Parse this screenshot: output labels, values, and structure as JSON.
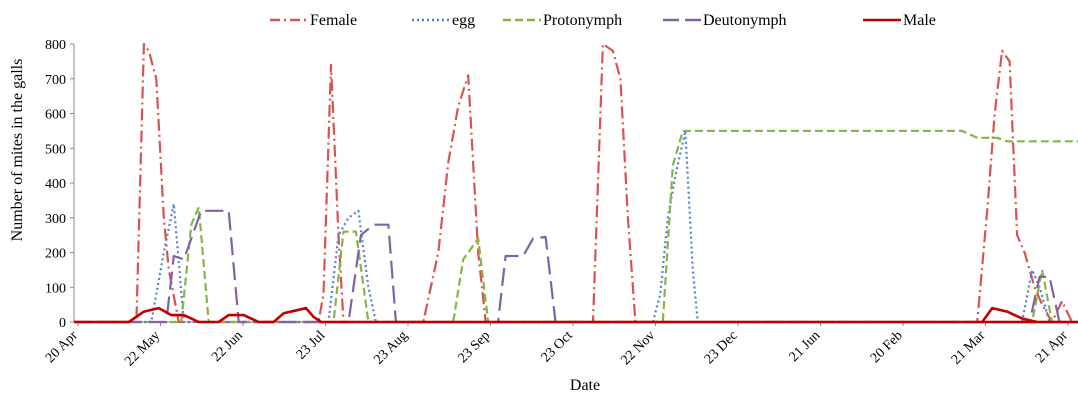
{
  "chart_data": {
    "type": "line",
    "xlabel": "Date",
    "ylabel": "Number of mites in the galls",
    "ylim": [
      0,
      800
    ],
    "yticks": [
      0,
      100,
      200,
      300,
      400,
      500,
      600,
      700,
      800
    ],
    "grid": false,
    "legend_position": "top",
    "x_tick_labels": [
      "20 Apr",
      "22 May",
      "22 Jun",
      "23 Jul",
      "23 Aug",
      "23 Sep",
      "23 Oct",
      "22 Nov",
      "23 Dec",
      "21 Jun",
      "20 Feb",
      "21 Mar",
      "21 Apr"
    ],
    "x": [
      0,
      1,
      2,
      3,
      4,
      5,
      6,
      7,
      8,
      9,
      10,
      11,
      12,
      13,
      14,
      15,
      16,
      17,
      18,
      19,
      20,
      21,
      22,
      23,
      24,
      25,
      26,
      27,
      28,
      29,
      30,
      31,
      32,
      33,
      34,
      35,
      36,
      37,
      38,
      39,
      40,
      41,
      42,
      43,
      44,
      45,
      46,
      47,
      48,
      49,
      50,
      51,
      52,
      53,
      54,
      55,
      56,
      57,
      58,
      59,
      60,
      61,
      62,
      63,
      64,
      65,
      66,
      67,
      68,
      69,
      70,
      71,
      72,
      73,
      74,
      75,
      76,
      77,
      78,
      79,
      80,
      81,
      82,
      83,
      84,
      85,
      86,
      87,
      88,
      89,
      90,
      91,
      92,
      93,
      94,
      95,
      96,
      97,
      98,
      99,
      100,
      101,
      102,
      103,
      104,
      105,
      106,
      107,
      108,
      109,
      110,
      111,
      112,
      113,
      114,
      115,
      116,
      117,
      118,
      119,
      120,
      121,
      122,
      123,
      124,
      125,
      126,
      127,
      128,
      129,
      130,
      131,
      132,
      133,
      134,
      135,
      136,
      137,
      138,
      139,
      140,
      141,
      142,
      143,
      144,
      145,
      146,
      147,
      148,
      149,
      150,
      151,
      152,
      153,
      154,
      155,
      156,
      157,
      158,
      159,
      160,
      161,
      162,
      163,
      164,
      165,
      166,
      167,
      168,
      169,
      170,
      171,
      172,
      173,
      174,
      175,
      176,
      177,
      178,
      179,
      180,
      181,
      182,
      183,
      184,
      185,
      186,
      187,
      188,
      189,
      190,
      191,
      192,
      193,
      194,
      195,
      196,
      197,
      198,
      199,
      200,
      201,
      202,
      203,
      204,
      205,
      206,
      207,
      208,
      209,
      210,
      211,
      212,
      213,
      214,
      215,
      216,
      217,
      218,
      219,
      220,
      221,
      222,
      223,
      224,
      225,
      226,
      227,
      228,
      229,
      230,
      231,
      232,
      233,
      234,
      235,
      236,
      237,
      238,
      239,
      240,
      241,
      242,
      243,
      244,
      245,
      246,
      247,
      248,
      249,
      250,
      251,
      252,
      253,
      254,
      255,
      256,
      257,
      258,
      259,
      260,
      261,
      262,
      263,
      264,
      265,
      266,
      267,
      268,
      269,
      270,
      271,
      272,
      273,
      274,
      275,
      276,
      277,
      278,
      279,
      280,
      281,
      282,
      283,
      284,
      285,
      286,
      287,
      288,
      289,
      290,
      291,
      292,
      293,
      294,
      295,
      296,
      297,
      298,
      299,
      300,
      301,
      302,
      303,
      304,
      305,
      306,
      307,
      308,
      309,
      310,
      311,
      312,
      313,
      314,
      315,
      316,
      317,
      318,
      319,
      320,
      321,
      322,
      323,
      324,
      325,
      326,
      327,
      328,
      329,
      330,
      331,
      332,
      333,
      334,
      335,
      336,
      337,
      338,
      339,
      340,
      341,
      342,
      343,
      344,
      345,
      346,
      347,
      348,
      349,
      350,
      351,
      352,
      353,
      354,
      355,
      356,
      357,
      358,
      359,
      360,
      361,
      362,
      363,
      364,
      365,
      366,
      367,
      368,
      369,
      370,
      371,
      372,
      373,
      374,
      375,
      376,
      377,
      378,
      379,
      380,
      381,
      382,
      383,
      384,
      385,
      386,
      387,
      388,
      389,
      390,
      391,
      392,
      393,
      394,
      395,
      396,
      397,
      398,
      399,
      400
    ],
    "series": [
      {
        "name": "Female",
        "color": "#d9534f",
        "dash": "dashdot",
        "points": [
          [
            0,
            0
          ],
          [
            25,
            0
          ],
          [
            28,
            800
          ],
          [
            30,
            780
          ],
          [
            33,
            700
          ],
          [
            36,
            300
          ],
          [
            38,
            150
          ],
          [
            42,
            0
          ],
          [
            98,
            0
          ],
          [
            100,
            80
          ],
          [
            103,
            740
          ],
          [
            106,
            250
          ],
          [
            108,
            0
          ],
          [
            140,
            0
          ],
          [
            146,
            200
          ],
          [
            150,
            460
          ],
          [
            154,
            620
          ],
          [
            158,
            710
          ],
          [
            162,
            200
          ],
          [
            165,
            0
          ],
          [
            208,
            0
          ],
          [
            212,
            800
          ],
          [
            216,
            780
          ],
          [
            219,
            700
          ],
          [
            222,
            300
          ],
          [
            225,
            0
          ],
          [
            362,
            0
          ],
          [
            366,
            320
          ],
          [
            369,
            600
          ],
          [
            372,
            780
          ],
          [
            375,
            750
          ],
          [
            378,
            250
          ],
          [
            381,
            200
          ],
          [
            385,
            100
          ],
          [
            388,
            50
          ],
          [
            392,
            0
          ],
          [
            396,
            60
          ],
          [
            400,
            0
          ]
        ]
      },
      {
        "name": "egg",
        "color": "#4f7fd9",
        "dash": "dot",
        "points": [
          [
            0,
            0
          ],
          [
            31,
            0
          ],
          [
            36,
            200
          ],
          [
            40,
            340
          ],
          [
            44,
            0
          ],
          [
            102,
            0
          ],
          [
            106,
            250
          ],
          [
            110,
            300
          ],
          [
            114,
            320
          ],
          [
            118,
            100
          ],
          [
            121,
            0
          ],
          [
            232,
            0
          ],
          [
            235,
            80
          ],
          [
            238,
            300
          ],
          [
            241,
            420
          ],
          [
            245,
            550
          ],
          [
            248,
            150
          ],
          [
            250,
            0
          ],
          [
            380,
            0
          ],
          [
            384,
            150
          ],
          [
            387,
            100
          ],
          [
            391,
            0
          ],
          [
            396,
            0
          ]
        ]
      },
      {
        "name": "Protonymph",
        "color": "#86b545",
        "dash": "dash",
        "points": [
          [
            0,
            0
          ],
          [
            43,
            0
          ],
          [
            47,
            280
          ],
          [
            50,
            330
          ],
          [
            54,
            0
          ],
          [
            104,
            0
          ],
          [
            108,
            260
          ],
          [
            113,
            260
          ],
          [
            118,
            0
          ],
          [
            152,
            0
          ],
          [
            156,
            180
          ],
          [
            162,
            240
          ],
          [
            166,
            0
          ],
          [
            236,
            0
          ],
          [
            240,
            450
          ],
          [
            244,
            550
          ],
          [
            356,
            550
          ],
          [
            362,
            530
          ],
          [
            370,
            530
          ],
          [
            374,
            520
          ],
          [
            409,
            520
          ],
          [
            413,
            0
          ],
          [
            384,
            0
          ],
          [
            388,
            150
          ],
          [
            392,
            0
          ],
          [
            396,
            0
          ]
        ]
      },
      {
        "name": "Deutonymph",
        "color": "#8064a2",
        "dash": "longdash",
        "points": [
          [
            0,
            0
          ],
          [
            37,
            0
          ],
          [
            40,
            190
          ],
          [
            44,
            180
          ],
          [
            48,
            260
          ],
          [
            51,
            320
          ],
          [
            62,
            320
          ],
          [
            66,
            0
          ],
          [
            110,
            0
          ],
          [
            115,
            250
          ],
          [
            120,
            280
          ],
          [
            126,
            280
          ],
          [
            129,
            0
          ],
          [
            170,
            0
          ],
          [
            173,
            190
          ],
          [
            180,
            190
          ],
          [
            184,
            240
          ],
          [
            189,
            245
          ],
          [
            193,
            0
          ],
          [
            412,
            0
          ],
          [
            416,
            540
          ],
          [
            453,
            540
          ],
          [
            457,
            0
          ],
          [
            383,
            0
          ],
          [
            387,
            130
          ],
          [
            391,
            130
          ],
          [
            395,
            0
          ],
          [
            400,
            0
          ]
        ]
      },
      {
        "name": "Male",
        "color": "#c00000",
        "dash": "solid",
        "points": [
          [
            0,
            0
          ],
          [
            22,
            0
          ],
          [
            28,
            30
          ],
          [
            34,
            40
          ],
          [
            39,
            20
          ],
          [
            44,
            20
          ],
          [
            50,
            0
          ],
          [
            58,
            0
          ],
          [
            62,
            20
          ],
          [
            68,
            20
          ],
          [
            74,
            0
          ],
          [
            80,
            0
          ],
          [
            84,
            25
          ],
          [
            90,
            35
          ],
          [
            93,
            40
          ],
          [
            96,
            15
          ],
          [
            99,
            0
          ],
          [
            460,
            0
          ],
          [
            364,
            0
          ],
          [
            368,
            40
          ],
          [
            374,
            30
          ],
          [
            380,
            10
          ],
          [
            386,
            0
          ],
          [
            400,
            0
          ]
        ]
      }
    ]
  }
}
